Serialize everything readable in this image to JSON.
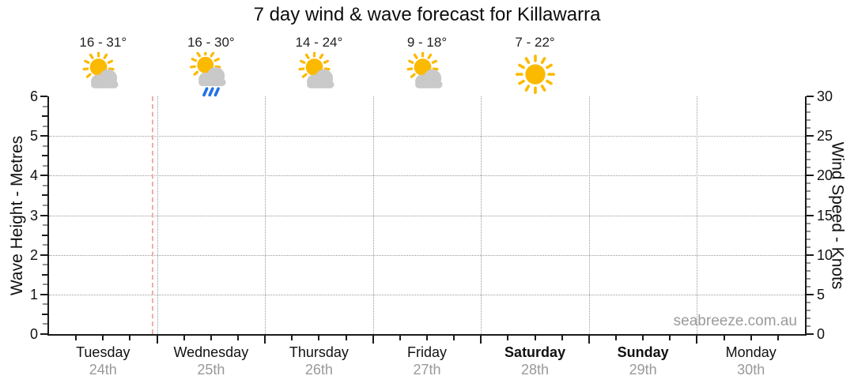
{
  "chart_data": {
    "type": "line",
    "title": "7 day wind & wave forecast for Killawarra",
    "subtitle": "",
    "grid": true,
    "series": [],
    "x_days": [
      {
        "name": "Tuesday",
        "date": "24th",
        "weekend": false
      },
      {
        "name": "Wednesday",
        "date": "25th",
        "weekend": false
      },
      {
        "name": "Thursday",
        "date": "26th",
        "weekend": false
      },
      {
        "name": "Friday",
        "date": "27th",
        "weekend": false
      },
      {
        "name": "Saturday",
        "date": "28th",
        "weekend": true
      },
      {
        "name": "Sunday",
        "date": "29th",
        "weekend": true
      },
      {
        "name": "Monday",
        "date": "30th",
        "weekend": false
      }
    ],
    "y_left": {
      "label": "Wave Height - Metres",
      "min": 0,
      "max": 6,
      "major_step": 1,
      "minor_step": 0.25,
      "tick_labels": [
        "0",
        "1",
        "2",
        "3",
        "4",
        "5",
        "6"
      ],
      "gridlines": [
        1,
        2,
        3,
        4,
        5
      ]
    },
    "y_right": {
      "label": "Wind Speed - Knots",
      "min": 0,
      "max": 30,
      "major_step": 5,
      "minor_step": 1,
      "tick_labels": [
        "0",
        "5",
        "10",
        "15",
        "20",
        "25",
        "30"
      ],
      "gridlines": [
        5,
        10,
        15,
        20,
        25
      ]
    },
    "daily_forecast": [
      {
        "day": "Tuesday",
        "temps": "16 - 31°",
        "min_temp": 16,
        "max_temp": 31,
        "condition": "partly-cloudy"
      },
      {
        "day": "Wednesday",
        "temps": "16 - 30°",
        "min_temp": 16,
        "max_temp": 30,
        "condition": "rain-showers"
      },
      {
        "day": "Thursday",
        "temps": "14 - 24°",
        "min_temp": 14,
        "max_temp": 24,
        "condition": "partly-cloudy"
      },
      {
        "day": "Friday",
        "temps": "9 - 18°",
        "min_temp": 9,
        "max_temp": 18,
        "condition": "partly-cloudy"
      },
      {
        "day": "Saturday",
        "temps": "7 - 22°",
        "min_temp": 7,
        "max_temp": 22,
        "condition": "sunny"
      }
    ],
    "now_marker": {
      "day_index": 0,
      "fraction_through_day": 0.96
    }
  },
  "watermark": "seabreeze.com.au",
  "colors": {
    "sun": "#FBBA00",
    "cloud": "#C9C9C9",
    "rain": "#2170E8",
    "axis": "#1A1A1A",
    "grid": "#9A9A9A",
    "now_line": "#F3ABAB",
    "date_text": "#999999",
    "watermark_text": "#9B9B9B"
  }
}
